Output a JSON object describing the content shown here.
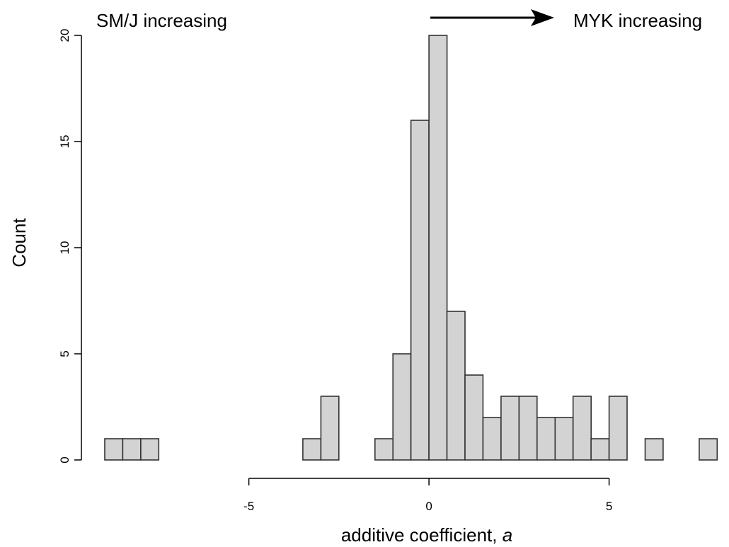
{
  "chart_data": {
    "type": "bar",
    "subtype": "histogram",
    "xlabel": "additive coefficient,",
    "xlabel_italic": "a",
    "ylabel": "Count",
    "bin_width": 0.5,
    "bins": [
      {
        "x0": -9.0,
        "x1": -8.5,
        "count": 1
      },
      {
        "x0": -8.5,
        "x1": -8.0,
        "count": 1
      },
      {
        "x0": -8.0,
        "x1": -7.5,
        "count": 1
      },
      {
        "x0": -3.5,
        "x1": -3.0,
        "count": 1
      },
      {
        "x0": -3.0,
        "x1": -2.5,
        "count": 3
      },
      {
        "x0": -1.5,
        "x1": -1.0,
        "count": 1
      },
      {
        "x0": -1.0,
        "x1": -0.5,
        "count": 5
      },
      {
        "x0": -0.5,
        "x1": 0.0,
        "count": 16
      },
      {
        "x0": 0.0,
        "x1": 0.5,
        "count": 20
      },
      {
        "x0": 0.5,
        "x1": 1.0,
        "count": 7
      },
      {
        "x0": 1.0,
        "x1": 1.5,
        "count": 4
      },
      {
        "x0": 1.5,
        "x1": 2.0,
        "count": 2
      },
      {
        "x0": 2.0,
        "x1": 2.5,
        "count": 3
      },
      {
        "x0": 2.5,
        "x1": 3.0,
        "count": 3
      },
      {
        "x0": 3.0,
        "x1": 3.5,
        "count": 2
      },
      {
        "x0": 3.5,
        "x1": 4.0,
        "count": 2
      },
      {
        "x0": 4.0,
        "x1": 4.5,
        "count": 3
      },
      {
        "x0": 4.5,
        "x1": 5.0,
        "count": 1
      },
      {
        "x0": 5.0,
        "x1": 5.5,
        "count": 3
      },
      {
        "x0": 6.0,
        "x1": 6.5,
        "count": 1
      },
      {
        "x0": 7.5,
        "x1": 8.0,
        "count": 1
      }
    ],
    "xlim": [
      -9.0,
      8.0
    ],
    "ylim": [
      0,
      20
    ],
    "x_axis_range": [
      -5,
      5
    ],
    "xticks": [
      -5,
      0,
      5
    ],
    "xtick_labels": [
      "-5",
      "0",
      "5"
    ],
    "yticks": [
      0,
      5,
      10,
      15,
      20
    ],
    "ytick_labels": [
      "0",
      "5",
      "10",
      "15",
      "20"
    ],
    "bar_fill": "#d3d3d3",
    "bar_stroke": "#333333",
    "grid": false,
    "annotations": {
      "left": "SM/J increasing",
      "right": "MYK increasing",
      "arrow": "right"
    }
  }
}
